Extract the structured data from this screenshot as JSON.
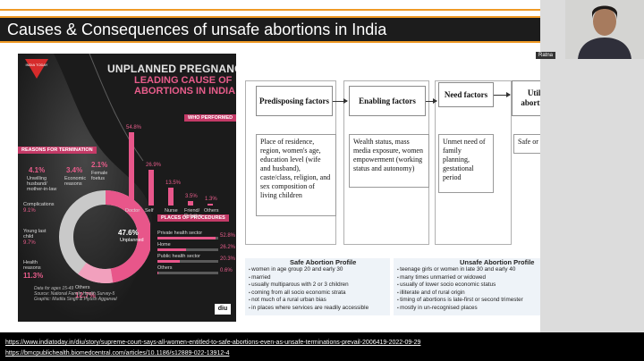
{
  "slide": {
    "title": "Causes & Consequences of unsafe abortions in India"
  },
  "infographic": {
    "logo_text": "INDIA TODAY",
    "title_line1": "UNPLANNED PREGNANCIES",
    "title_line2": "LEADING CAUSE OF",
    "title_line3": "ABORTIONS IN INDIA",
    "reasons_tag": "REASONS FOR TERMINATION",
    "who_tag": "WHO PERFORMED",
    "places_tag": "PLACES OF PROCEDURES",
    "reasons": [
      {
        "pct": "4.1%",
        "label": "Unwilling husband/ mother-in-law"
      },
      {
        "pct": "3.4%",
        "label": "Economic reasons"
      },
      {
        "pct": "2.1%",
        "label": "Female foetus"
      }
    ],
    "ring_labels": [
      {
        "label": "Complications",
        "pct": "9.1%"
      },
      {
        "label": "Young last child",
        "pct": "9.7%"
      },
      {
        "label": "Health reasons",
        "pct": "11.3%"
      },
      {
        "label": "Others",
        "pct": "12.7%"
      }
    ],
    "center_pct": "47.6%",
    "center_label": "Unplanned",
    "who_performed": [
      {
        "label": "Doctor",
        "pct": "54.8%",
        "value": 54.8
      },
      {
        "label": "Self",
        "pct": "26.9%",
        "value": 26.9
      },
      {
        "label": "Nurse",
        "pct": "13.5%",
        "value": 13.5
      },
      {
        "label": "Friend/ Relative",
        "pct": "3.5%",
        "value": 3.5
      },
      {
        "label": "Others",
        "pct": "1.3%",
        "value": 1.3
      }
    ],
    "places": [
      {
        "label": "Private health sector",
        "pct": "52.8%",
        "value": 52.8
      },
      {
        "label": "Home",
        "pct": "26.2%",
        "value": 26.2
      },
      {
        "label": "Public health sector",
        "pct": "20.3%",
        "value": 20.3
      },
      {
        "label": "Others",
        "pct": "0.6%",
        "value": 0.6
      }
    ],
    "credit_line1": "Data for ages 15-49",
    "credit_line2": "Source: National Family Health Survey-5",
    "credit_line3": "Graphic: Mudita Singh & Piyush Aggarwal",
    "brand": "diu"
  },
  "flow": {
    "headers": [
      "Predisposing factors",
      "Enabling factors",
      "Need factors",
      "Utilization of abortion services"
    ],
    "bodies": [
      "Place of residence, region, women's age, education level (wife and husband), caste/class, religion, and sex composition of living children",
      "Wealth status, mass media exposure, women empowerment (working status and autonomy)",
      "Unmet need of family planning, gestational period",
      "Safe or unsafe abortion"
    ]
  },
  "profiles": {
    "safe_title": "Safe Abortion Profile",
    "safe_items": [
      "women in age group 20 and early 30",
      "married",
      "usually multiparous with 2 or 3 children",
      "coming from all socio economic strata",
      "not much of a rural urban bias",
      "in places where services are readily accessible"
    ],
    "unsafe_title": "Unsafe Abortion Profile",
    "unsafe_items": [
      "teenage girls or women in late 30 and early 40",
      "many times unmarried or widowed",
      "usually of lower socio economic status",
      "illiterate and of rural origin",
      "timing of abortions is late-first or second trimester",
      "mostly in un-recognised places"
    ]
  },
  "webcam": {
    "participant_name": "Ratna"
  },
  "caption": {
    "line1": "https://www.indiatoday.in/diu/story/supreme-court-says-all-women-entitled-to-safe-abortions-even-as-unsafe-terminations-prevail-2006419-2022-09-29",
    "line2": "https://bmcpublichealth.biomedcentral.com/articles/10.1186/s12889-022-13912-4"
  },
  "colors": {
    "accent": "#f09a25",
    "pink": "#e8568a",
    "dark": "#1b1b1b"
  }
}
